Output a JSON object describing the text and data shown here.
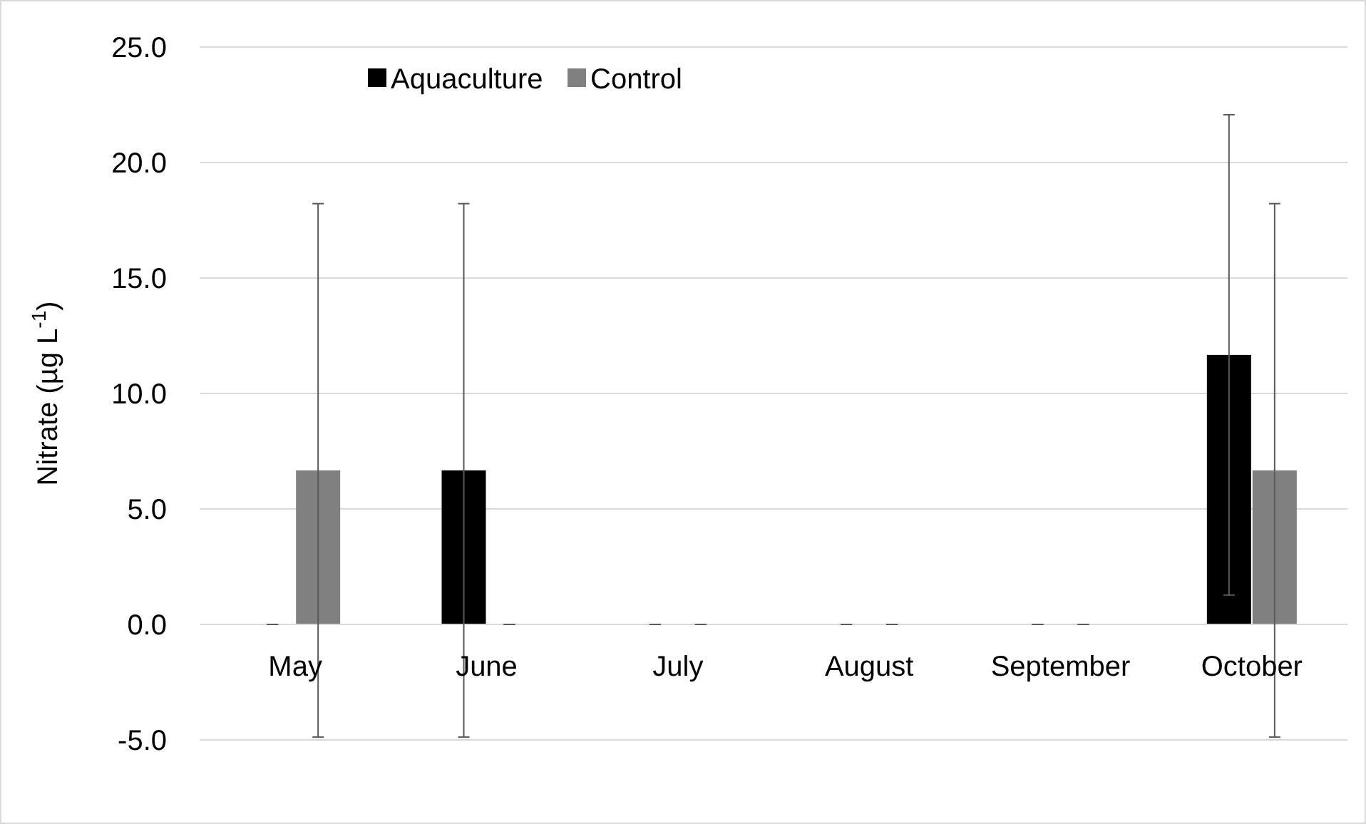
{
  "chart_data": {
    "type": "bar",
    "ylabel": "Nitrate (µg L$^{-1}$)",
    "categories": [
      "May",
      "June",
      "July",
      "August",
      "September",
      "October"
    ],
    "series": [
      {
        "name": "Aquaculture",
        "color": "#000000",
        "values": [
          0,
          6.67,
          0,
          0,
          0,
          11.67
        ],
        "errors": [
          0,
          11.55,
          0,
          0,
          0,
          10.4
        ]
      },
      {
        "name": "Control",
        "color": "#808080",
        "values": [
          6.67,
          0,
          0,
          0,
          0,
          6.67
        ],
        "errors": [
          11.55,
          0,
          0,
          0,
          0,
          11.55
        ]
      }
    ],
    "ylim": [
      -5,
      25
    ],
    "yticks": [
      {
        "value": -5,
        "label": "-5.0"
      },
      {
        "value": 0,
        "label": "0.0"
      },
      {
        "value": 5,
        "label": "5.0"
      },
      {
        "value": 10,
        "label": "10.0"
      },
      {
        "value": 15,
        "label": "15.0"
      },
      {
        "value": 20,
        "label": "20.0"
      },
      {
        "value": 25,
        "label": "25.0"
      }
    ],
    "grid": "y",
    "legend": "top left"
  }
}
